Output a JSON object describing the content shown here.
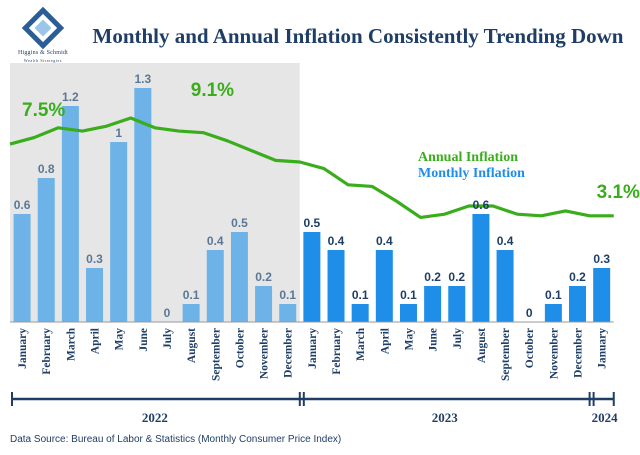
{
  "logo": {
    "name": "Higgins & Schmidt",
    "subtitle": "Wealth Strategies"
  },
  "title": "Monthly and Annual Inflation Consistently Trending Down",
  "source": "Data Source: Bureau of Labor & Statistics (Monthly Consumer Price Index)",
  "colors": {
    "monthly_2022": "#6db3e8",
    "monthly_2023_on": "#1f8ee8",
    "annual_line": "#3aad1c",
    "highlight_2022": "#e6e6e6",
    "timeline": "#1f3e66"
  },
  "chart_data": {
    "type": "bar",
    "categories": [
      "January",
      "February",
      "March",
      "April",
      "May",
      "June",
      "July",
      "August",
      "September",
      "October",
      "November",
      "December",
      "January",
      "February",
      "March",
      "April",
      "May",
      "June",
      "July",
      "August",
      "September",
      "October",
      "November",
      "December",
      "January"
    ],
    "series": [
      {
        "name": "Monthly Inflation",
        "type": "bar",
        "values": [
          0.6,
          0.8,
          1.2,
          0.3,
          1,
          1.3,
          0,
          0.1,
          0.4,
          0.5,
          0.2,
          0.1,
          0.5,
          0.4,
          0.1,
          0.4,
          0.1,
          0.2,
          0.2,
          0.6,
          0.4,
          0,
          0.1,
          0.2,
          0.3
        ],
        "labels": [
          "0.6",
          "0.8",
          "1.2",
          "0.3",
          "1",
          "1.3",
          "0",
          "0.1",
          "0.4",
          "0.5",
          "0.2",
          "0.1",
          "0.5",
          "0.4",
          "0.1",
          "0.4",
          "0.1",
          "0.2",
          "0.2",
          "0.6",
          "0.4",
          "0",
          "0.1",
          "0.2",
          "0.3"
        ]
      },
      {
        "name": "Annual Inflation",
        "type": "line",
        "values": [
          7.5,
          7.9,
          8.5,
          8.3,
          8.6,
          9.1,
          8.5,
          8.3,
          8.2,
          7.7,
          7.1,
          6.5,
          6.4,
          6.0,
          5.0,
          4.9,
          4.0,
          3.0,
          3.2,
          3.7,
          3.7,
          3.2,
          3.1,
          3.4,
          3.1
        ]
      }
    ],
    "annotations": [
      {
        "label": "7.5%",
        "index": 0
      },
      {
        "label": "9.1%",
        "index": 5
      },
      {
        "label": "3.1%",
        "index": 24
      }
    ],
    "legend": [
      "Annual Inflation",
      "Monthly Inflation"
    ],
    "legend_position": "right",
    "ylim_monthly": [
      0,
      1.3
    ],
    "ylim_annual": [
      0,
      9.1
    ],
    "highlight_region": "2022",
    "years": [
      {
        "label": "2022",
        "start_index": 0,
        "end_index": 11
      },
      {
        "label": "2023",
        "start_index": 12,
        "end_index": 23
      },
      {
        "label": "2024",
        "start_index": 24,
        "end_index": 24
      }
    ],
    "grid": false
  }
}
